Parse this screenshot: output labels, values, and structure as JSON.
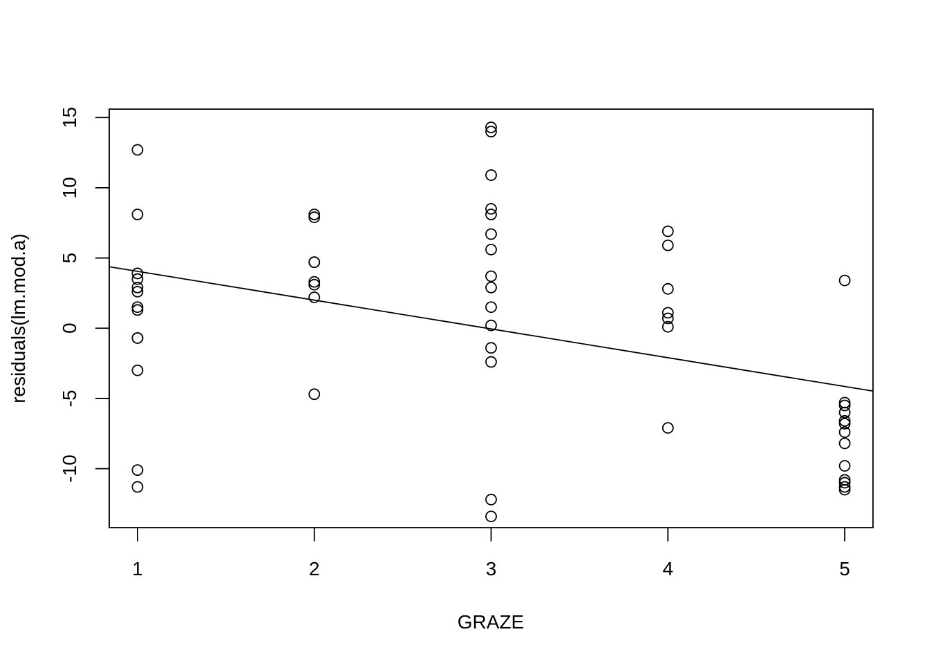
{
  "chart_data": {
    "type": "scatter",
    "title": "",
    "xlabel": "GRAZE",
    "ylabel": "residuals(lm.mod.a)",
    "xlim": [
      0.84,
      5.16
    ],
    "ylim": [
      -14.2,
      15.6
    ],
    "x_ticks": [
      1,
      2,
      3,
      4,
      5
    ],
    "x_tick_labels": [
      "1",
      "2",
      "3",
      "4",
      "5"
    ],
    "y_ticks": [
      -10,
      -5,
      0,
      5,
      10,
      15
    ],
    "y_tick_labels": [
      "-10",
      "-5",
      "0",
      "5",
      "10",
      "15"
    ],
    "grid": false,
    "legend": "none",
    "points": [
      [
        1,
        12.7
      ],
      [
        1,
        8.1
      ],
      [
        1,
        3.9
      ],
      [
        1,
        3.5
      ],
      [
        1,
        2.9
      ],
      [
        1,
        2.6
      ],
      [
        1,
        1.5
      ],
      [
        1,
        1.3
      ],
      [
        1,
        -0.7
      ],
      [
        1,
        -0.7
      ],
      [
        1,
        -3.0
      ],
      [
        1,
        -10.1
      ],
      [
        1,
        -11.3
      ],
      [
        2,
        8.1
      ],
      [
        2,
        7.9
      ],
      [
        2,
        4.7
      ],
      [
        2,
        4.7
      ],
      [
        2,
        3.3
      ],
      [
        2,
        3.1
      ],
      [
        2,
        2.2
      ],
      [
        2,
        -4.7
      ],
      [
        3,
        14.3
      ],
      [
        3,
        14.0
      ],
      [
        3,
        10.9
      ],
      [
        3,
        8.5
      ],
      [
        3,
        8.1
      ],
      [
        3,
        6.7
      ],
      [
        3,
        5.6
      ],
      [
        3,
        3.7
      ],
      [
        3,
        2.9
      ],
      [
        3,
        1.5
      ],
      [
        3,
        0.2
      ],
      [
        3,
        -1.4
      ],
      [
        3,
        -2.4
      ],
      [
        3,
        -12.2
      ],
      [
        3,
        -13.4
      ],
      [
        4,
        6.9
      ],
      [
        4,
        5.9
      ],
      [
        4,
        2.8
      ],
      [
        4,
        1.1
      ],
      [
        4,
        0.7
      ],
      [
        4,
        0.1
      ],
      [
        4,
        -7.1
      ],
      [
        5,
        3.4
      ],
      [
        5,
        -5.3
      ],
      [
        5,
        -5.5
      ],
      [
        5,
        -6.0
      ],
      [
        5,
        -6.6
      ],
      [
        5,
        -6.8
      ],
      [
        5,
        -7.4
      ],
      [
        5,
        -8.2
      ],
      [
        5,
        -9.8
      ],
      [
        5,
        -10.8
      ],
      [
        5,
        -11.0
      ],
      [
        5,
        -11.3
      ],
      [
        5,
        -11.5
      ]
    ],
    "fit_line": {
      "intercept": 6.1,
      "slope": -2.05
    }
  }
}
